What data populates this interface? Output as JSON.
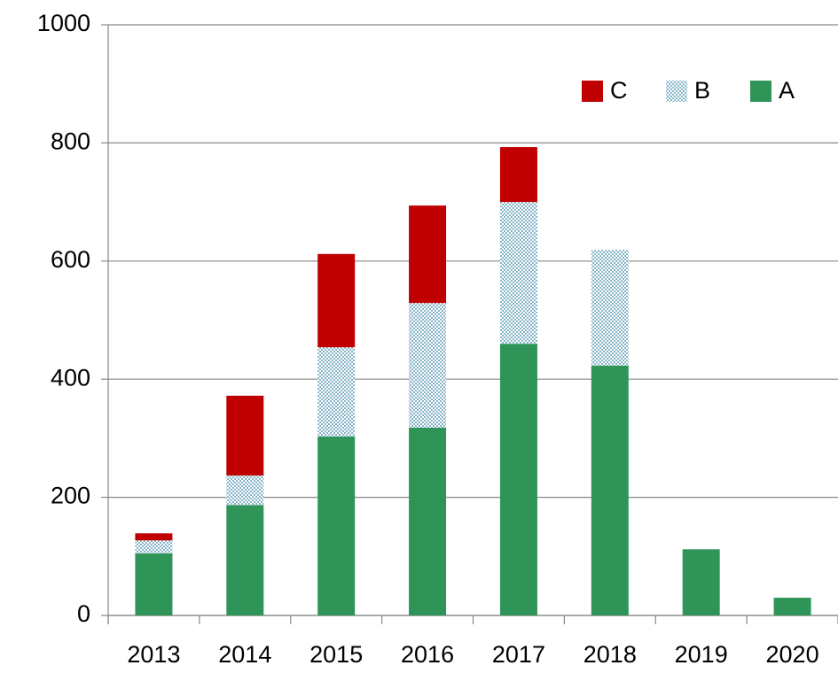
{
  "chart_data": {
    "type": "stacked_bar",
    "categories": [
      "2013",
      "2014",
      "2015",
      "2016",
      "2017",
      "2018",
      "2019",
      "2020"
    ],
    "series": [
      {
        "name": "A",
        "color": "#2e9458",
        "values": [
          105,
          187,
          303,
          318,
          460,
          423,
          112,
          30
        ]
      },
      {
        "name": "B",
        "color": "#86b4c8",
        "values": [
          22,
          50,
          151,
          211,
          240,
          196,
          0,
          0
        ]
      },
      {
        "name": "C",
        "color": "#c00000",
        "values": [
          12,
          135,
          158,
          165,
          93,
          0,
          0,
          0
        ]
      }
    ],
    "ylim": [
      0,
      1000
    ],
    "yticks": [
      0,
      200,
      400,
      600,
      800,
      1000
    ],
    "grid": true,
    "legend": "top-right"
  }
}
